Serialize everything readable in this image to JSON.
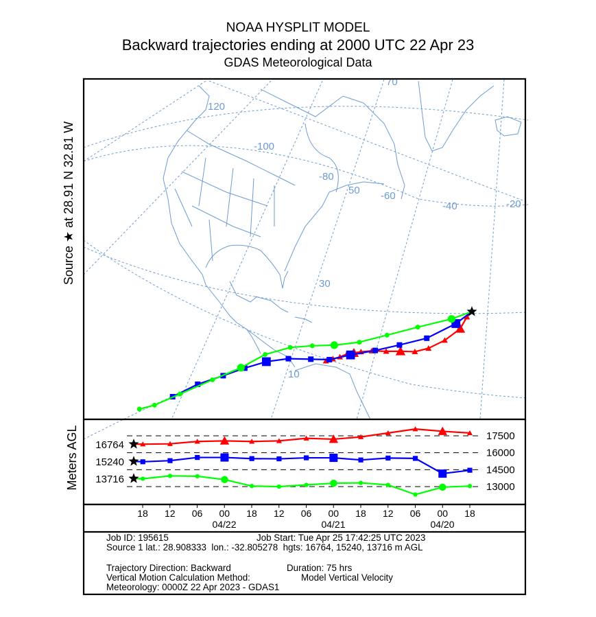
{
  "header": {
    "line1": "NOAA HYSPLIT MODEL",
    "line2": "Backward trajectories ending at 2000 UTC 22 Apr 23",
    "line3": "GDAS Meteorological Data"
  },
  "source_label": "Source ★  at    28.91 N    32.81 W",
  "chart_data": [
    {
      "type": "line",
      "name": "trajectory-map",
      "title": "Backward trajectories ending at 2000 UTC 22 Apr 23",
      "grid": true,
      "grid_labels": [
        "120",
        "-100",
        "-80",
        "70",
        "50",
        "-60",
        "-40",
        "-20",
        "30",
        "10"
      ],
      "source": {
        "lat": 28.91,
        "lon": -32.81,
        "marker": "star"
      },
      "series": [
        {
          "name": "16764 m AGL",
          "color": "#ff0000",
          "marker": "triangle",
          "points_lonlat_approx": [
            [
              -76,
              24.5
            ],
            [
              -74,
              24.4
            ],
            [
              -72,
              24.3
            ],
            [
              -70,
              24.4
            ],
            [
              -68,
              24.2
            ],
            [
              -66,
              24.0
            ],
            [
              -63,
              23.6
            ],
            [
              -59,
              22.8
            ],
            [
              -55,
              22.2
            ],
            [
              -51,
              21.6
            ],
            [
              -47,
              21.9
            ],
            [
              -42,
              23.2
            ],
            [
              -37,
              25.4
            ],
            [
              -34.5,
              27.8
            ],
            [
              -32.81,
              28.91
            ]
          ]
        },
        {
          "name": "15240 m AGL",
          "color": "#0000ff",
          "marker": "square",
          "points_lonlat_approx": [
            [
              -118,
              34
            ],
            [
              -111,
              33
            ],
            [
              -104,
              31.5
            ],
            [
              -98,
              30.5
            ],
            [
              -92,
              29.5
            ],
            [
              -86,
              28
            ],
            [
              -80,
              26
            ],
            [
              -75,
              24.5
            ],
            [
              -69,
              24
            ],
            [
              -62,
              23.5
            ],
            [
              -55,
              23.5
            ],
            [
              -47,
              24
            ],
            [
              -38,
              26.5
            ],
            [
              -32.81,
              28.91
            ]
          ]
        },
        {
          "name": "13716 m AGL",
          "color": "#00ff00",
          "marker": "circle",
          "points_lonlat_approx": [
            [
              -127,
              36.5
            ],
            [
              -123,
              35
            ],
            [
              -116,
              33.5
            ],
            [
              -107,
              32
            ],
            [
              -99,
              31
            ],
            [
              -92,
              31
            ],
            [
              -85,
              30
            ],
            [
              -79,
              28.5
            ],
            [
              -73,
              27
            ],
            [
              -66,
              26
            ],
            [
              -58,
              26
            ],
            [
              -49,
              26.5
            ],
            [
              -39,
              27.5
            ],
            [
              -32.81,
              28.91
            ]
          ]
        }
      ]
    },
    {
      "type": "line",
      "name": "height-profile",
      "ylabel": "Meters AGL",
      "y_ticks": [
        17500,
        16000,
        14500,
        13000
      ],
      "x_ticks": [
        "18",
        "12",
        "06",
        "00",
        "18",
        "12",
        "06",
        "00",
        "18",
        "12",
        "06",
        "00",
        "18"
      ],
      "date_labels": [
        "04/22",
        "04/21",
        "04/20"
      ],
      "start_heights": [
        "16764",
        "15240",
        "13716"
      ],
      "x_hours_before_end": [
        0,
        2,
        8,
        14,
        20,
        26,
        32,
        38,
        44,
        50,
        56,
        62,
        68,
        74
      ],
      "series": [
        {
          "name": "16764",
          "color": "#ff0000",
          "marker": "triangle",
          "values": [
            16764,
            16760,
            16790,
            17000,
            17050,
            17000,
            17050,
            17280,
            17200,
            17400,
            17750,
            18100,
            17900,
            17750
          ]
        },
        {
          "name": "15240",
          "color": "#0000ff",
          "marker": "square",
          "values": [
            15240,
            15200,
            15300,
            15580,
            15580,
            15480,
            15460,
            15550,
            15550,
            15360,
            15530,
            15500,
            14150,
            14450
          ]
        },
        {
          "name": "13716",
          "color": "#00ff00",
          "marker": "circle",
          "values": [
            13716,
            13700,
            13950,
            13920,
            13620,
            13050,
            13000,
            13150,
            13300,
            13330,
            13150,
            12300,
            12950,
            13050
          ]
        }
      ]
    }
  ],
  "footer": {
    "job_id": "Job ID: 195615",
    "job_start": "Job Start: Tue Apr 25 17:42:25 UTC 2023",
    "source_line": "Source 1 lat.: 28.908333  lon.: -32.805278  hgts: 16764, 15240, 13716 m AGL",
    "direction": "Trajectory Direction: Backward",
    "duration": "Duration: 75 hrs",
    "vertical_label": "Vertical Motion Calculation Method:",
    "vertical_value": "Model Vertical Velocity",
    "meteorology": "Meteorology: 0000Z 22 Apr 2023 - GDAS1"
  },
  "colors": {
    "map": "#6d9bd1",
    "red": "#ff0000",
    "blue": "#0000ff",
    "green": "#00ff00"
  }
}
